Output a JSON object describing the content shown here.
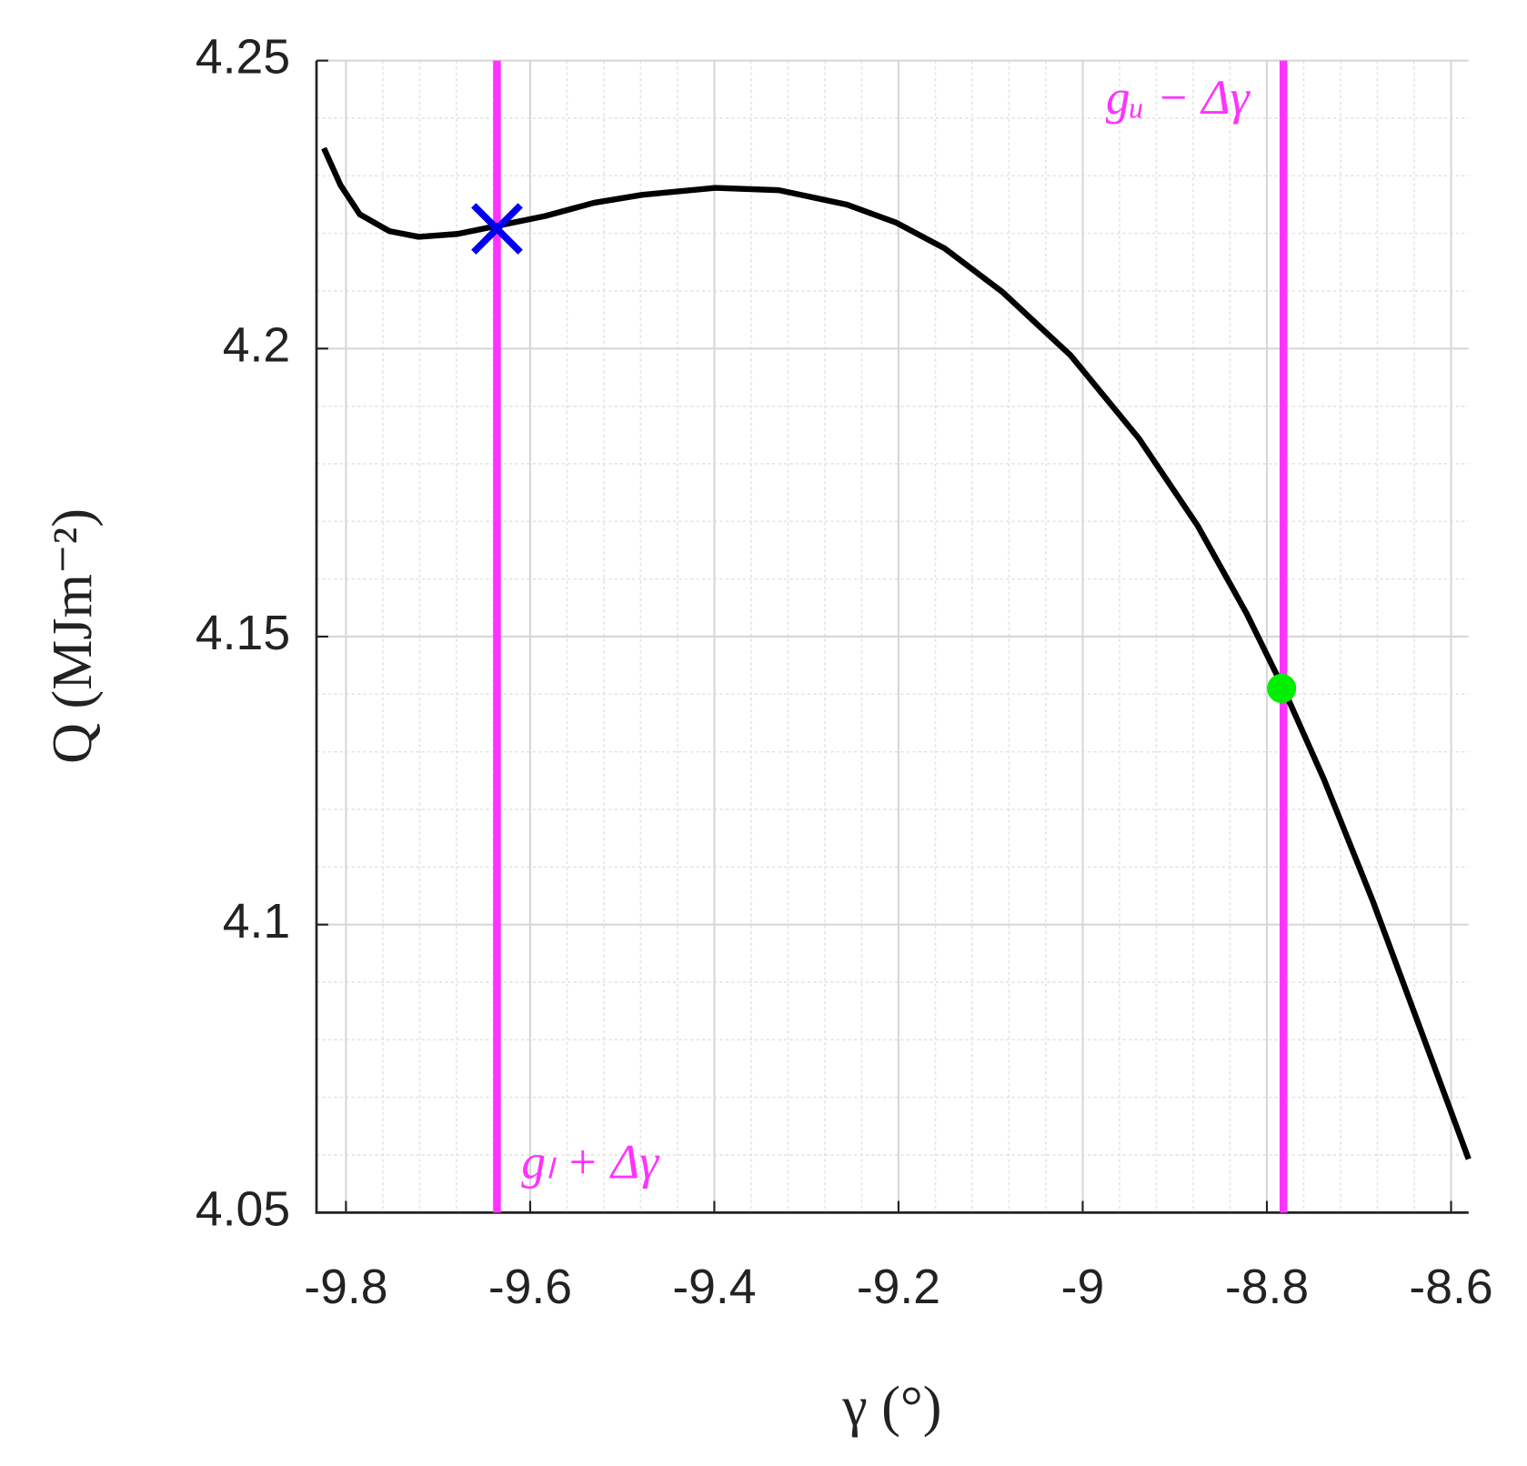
{
  "chart_data": {
    "type": "line",
    "x_label": "γ (°)",
    "y_label": "Q (MJm⁻²)",
    "xlim": [
      -9.832,
      -8.581
    ],
    "ylim": [
      4.05,
      4.25
    ],
    "xticks": [
      -9.8,
      -9.6,
      -9.4,
      -9.2,
      -9,
      -8.8,
      -8.6
    ],
    "yticks": [
      4.05,
      4.1,
      4.15,
      4.2,
      4.25
    ],
    "x_minor_ticks": [
      -9.8,
      -9.76,
      -9.72,
      -9.68,
      -9.64,
      -9.6,
      -9.56,
      -9.52,
      -9.48,
      -9.44,
      -9.4,
      -9.36,
      -9.32,
      -9.28,
      -9.24,
      -9.2,
      -9.16,
      -9.12,
      -9.08,
      -9.04,
      -9,
      -8.96,
      -8.92,
      -8.88,
      -8.84,
      -8.8,
      -8.76,
      -8.72,
      -8.68,
      -8.64,
      -8.6
    ],
    "y_minor_ticks": [
      4.05,
      4.06,
      4.07,
      4.08,
      4.09,
      4.1,
      4.11,
      4.12,
      4.13,
      4.14,
      4.15,
      4.16,
      4.17,
      4.18,
      4.19,
      4.2,
      4.21,
      4.22,
      4.23,
      4.24,
      4.25
    ],
    "grid": true,
    "series": [
      {
        "color": "#000000",
        "x": [
          -9.824,
          -9.806,
          -9.785,
          -9.753,
          -9.721,
          -9.679,
          -9.636,
          -9.584,
          -9.531,
          -9.478,
          -9.399,
          -9.33,
          -9.256,
          -9.203,
          -9.15,
          -9.087,
          -9.013,
          -8.939,
          -8.875,
          -8.822,
          -8.782,
          -8.738,
          -8.685,
          -8.632,
          -8.581
        ],
        "values": [
          4.2348,
          4.2284,
          4.2233,
          4.2204,
          4.2194,
          4.2199,
          4.2213,
          4.223,
          4.2253,
          4.2267,
          4.2279,
          4.2275,
          4.225,
          4.2219,
          4.2174,
          4.2098,
          4.1988,
          4.1844,
          4.1692,
          4.154,
          4.141,
          4.1252,
          4.1041,
          4.0813,
          4.0593
        ]
      }
    ],
    "vertical_lines": [
      {
        "x": -9.636,
        "color": "#ff33ff",
        "label": "gₗ + Δγ",
        "label_position": "bottom"
      },
      {
        "x": -8.782,
        "color": "#ff33ff",
        "label": "gᵤ − Δγ",
        "label_position": "top"
      }
    ],
    "markers": [
      {
        "x": -9.636,
        "y": 4.2208,
        "color": "#0000ee",
        "symbol": "cross"
      },
      {
        "x": -8.784,
        "y": 4.141,
        "color": "#00ee00",
        "symbol": "dot"
      }
    ]
  }
}
